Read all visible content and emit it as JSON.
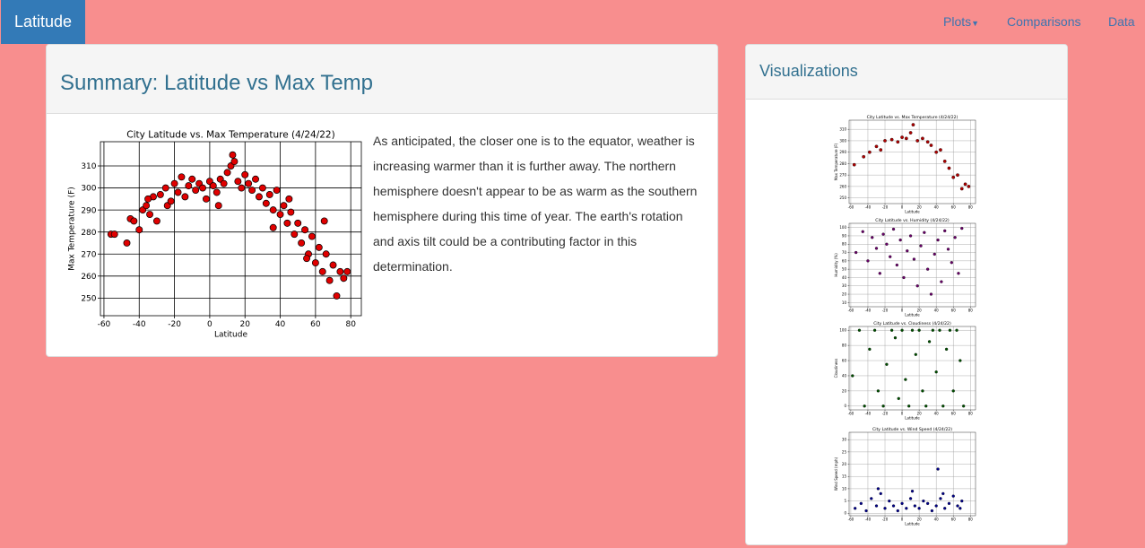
{
  "navbar": {
    "brand": "Latitude",
    "links": [
      "Plots",
      "Comparisons",
      "Data"
    ]
  },
  "summary": {
    "title": "Summary: Latitude vs Max Temp",
    "text": "As anticipated, the closer one is to the equator, weather is increasing warmer than it is further away. The northern hemisphere doesn't appear to be as warm as the southern hemisphere during this time of year. The earth's rotation and axis tilt could be a contributing factor in this determination."
  },
  "visualizations": {
    "title": "Visualizations"
  },
  "chart_data": [
    {
      "type": "scatter",
      "title": "City Latitude vs. Max Temperature (4/24/22)",
      "xlabel": "Latitude",
      "ylabel": "Max Temperature (F)",
      "color": "#e00000",
      "edgecolor": "#000000",
      "grid": true,
      "xlim": [
        -62,
        86
      ],
      "ylim": [
        242,
        321
      ],
      "xticks": [
        -60,
        -40,
        -20,
        0,
        20,
        40,
        60,
        80
      ],
      "yticks": [
        250,
        260,
        270,
        280,
        290,
        300,
        310
      ],
      "x": [
        -56,
        -54,
        -47,
        -45,
        -43,
        -40,
        -38,
        -36,
        -34,
        -32,
        -30,
        -28,
        -25,
        -24,
        -22,
        -20,
        -18,
        -16,
        -14,
        -12,
        -10,
        -8,
        -6,
        -4,
        -2,
        0,
        2,
        4,
        6,
        8,
        10,
        12,
        13,
        14,
        16,
        18,
        20,
        22,
        24,
        26,
        28,
        30,
        32,
        34,
        36,
        38,
        40,
        42,
        44,
        46,
        48,
        50,
        52,
        54,
        56,
        58,
        60,
        62,
        64,
        66,
        68,
        70,
        72,
        74,
        76,
        78,
        36,
        45,
        55,
        65,
        -35,
        5
      ],
      "y": [
        279,
        279,
        275,
        286,
        285,
        281,
        290,
        292,
        288,
        296,
        285,
        297,
        300,
        292,
        294,
        302,
        298,
        305,
        296,
        301,
        304,
        299,
        302,
        300,
        295,
        303,
        301,
        298,
        304,
        302,
        307,
        310,
        315,
        312,
        303,
        300,
        306,
        302,
        299,
        304,
        296,
        300,
        293,
        297,
        290,
        299,
        288,
        292,
        284,
        289,
        279,
        284,
        275,
        281,
        270,
        278,
        266,
        273,
        262,
        270,
        258,
        265,
        251,
        262,
        259,
        262,
        282,
        295,
        268,
        285,
        295,
        292
      ]
    },
    {
      "type": "scatter",
      "title": "City Latitude vs. Max Temperature (4/24/22)",
      "xlabel": "Latitude",
      "ylabel": "Max Temperature (F)",
      "color": "#b00000",
      "edgecolor": "#000000",
      "grid": true,
      "xlim": [
        -62,
        86
      ],
      "ylim": [
        245,
        318
      ],
      "xticks": [
        -60,
        -40,
        -20,
        0,
        20,
        40,
        60,
        80
      ],
      "yticks": [
        250,
        260,
        270,
        280,
        290,
        300,
        310
      ],
      "x": [
        -56,
        -45,
        -38,
        -30,
        -25,
        -20,
        -12,
        -5,
        0,
        5,
        10,
        13,
        18,
        24,
        30,
        34,
        40,
        45,
        50,
        55,
        60,
        65,
        70,
        74,
        78
      ],
      "y": [
        279,
        286,
        290,
        295,
        292,
        300,
        301,
        299,
        303,
        302,
        307,
        314,
        300,
        302,
        299,
        296,
        290,
        292,
        282,
        276,
        268,
        270,
        258,
        262,
        260
      ]
    },
    {
      "type": "scatter",
      "title": "City Latitude vs. Humidity (4/24/22)",
      "xlabel": "Latitude",
      "ylabel": "Humidity (%)",
      "color": "#6a006a",
      "edgecolor": "#000000",
      "grid": true,
      "xlim": [
        -62,
        86
      ],
      "ylim": [
        5,
        105
      ],
      "xticks": [
        -60,
        -40,
        -20,
        0,
        20,
        40,
        60,
        80
      ],
      "yticks": [
        10,
        20,
        30,
        40,
        50,
        60,
        70,
        80,
        90,
        100
      ],
      "x": [
        -54,
        -46,
        -40,
        -35,
        -30,
        -26,
        -22,
        -18,
        -14,
        -10,
        -6,
        -2,
        2,
        6,
        10,
        14,
        18,
        22,
        26,
        30,
        34,
        38,
        42,
        46,
        50,
        54,
        58,
        62,
        66,
        70
      ],
      "y": [
        70,
        95,
        60,
        88,
        75,
        45,
        92,
        80,
        65,
        98,
        55,
        85,
        40,
        72,
        90,
        62,
        30,
        78,
        94,
        50,
        20,
        68,
        85,
        35,
        96,
        74,
        58,
        88,
        45,
        99
      ]
    },
    {
      "type": "scatter",
      "title": "City Latitude vs. Cloudiness (4/24/22)",
      "xlabel": "Latitude",
      "ylabel": "Cloudiness",
      "color": "#005000",
      "edgecolor": "#000000",
      "grid": true,
      "xlim": [
        -62,
        86
      ],
      "ylim": [
        -5,
        105
      ],
      "xticks": [
        -60,
        -40,
        -20,
        0,
        20,
        40,
        60,
        80
      ],
      "yticks": [
        0,
        20,
        40,
        60,
        80,
        100
      ],
      "x": [
        -58,
        -50,
        -44,
        -38,
        -32,
        -28,
        -22,
        -18,
        -12,
        -8,
        -4,
        0,
        4,
        8,
        12,
        16,
        20,
        24,
        28,
        32,
        36,
        40,
        44,
        48,
        52,
        56,
        60,
        64,
        68,
        72
      ],
      "y": [
        40,
        100,
        0,
        75,
        100,
        20,
        0,
        55,
        100,
        90,
        10,
        100,
        35,
        0,
        100,
        68,
        100,
        20,
        0,
        85,
        100,
        45,
        100,
        0,
        75,
        100,
        20,
        100,
        60,
        0
      ]
    },
    {
      "type": "scatter",
      "title": "City Latitude vs. Wind Speed (4/24/22)",
      "xlabel": "Latitude",
      "ylabel": "Wind Speed (mph)",
      "color": "#00008b",
      "edgecolor": "#000000",
      "grid": true,
      "xlim": [
        -62,
        86
      ],
      "ylim": [
        -1,
        33
      ],
      "xticks": [
        -60,
        -40,
        -20,
        0,
        20,
        40,
        60,
        80
      ],
      "yticks": [
        0,
        5,
        10,
        15,
        20,
        25,
        30
      ],
      "x": [
        -55,
        -48,
        -42,
        -36,
        -30,
        -25,
        -20,
        -15,
        -10,
        -5,
        0,
        5,
        10,
        15,
        20,
        25,
        30,
        35,
        40,
        42,
        45,
        50,
        55,
        60,
        65,
        70,
        -28,
        12,
        48,
        68
      ],
      "y": [
        2,
        4,
        1,
        6,
        3,
        8,
        2,
        5,
        3,
        1,
        4,
        2,
        6,
        3,
        2,
        5,
        4,
        1,
        3,
        18,
        6,
        2,
        4,
        7,
        3,
        5,
        10,
        9,
        8,
        2
      ]
    }
  ]
}
